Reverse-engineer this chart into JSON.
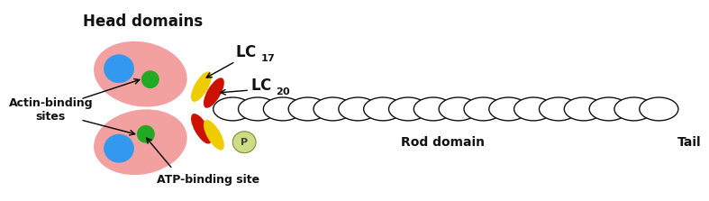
{
  "bg_color": "#ffffff",
  "head_color": "#f2a0a0",
  "blue_color": "#3399ee",
  "green_color": "#22aa22",
  "yellow_color": "#eecc00",
  "red_color": "#cc1100",
  "phospho_color": "#ccdd88",
  "rod_color": "#111111",
  "text_color": "#111111",
  "title": "Head domains",
  "label_actin": "Actin-binding\nsites",
  "label_atp": "ATP-binding site",
  "label_rod": "Rod domain",
  "label_tail": "Tail"
}
